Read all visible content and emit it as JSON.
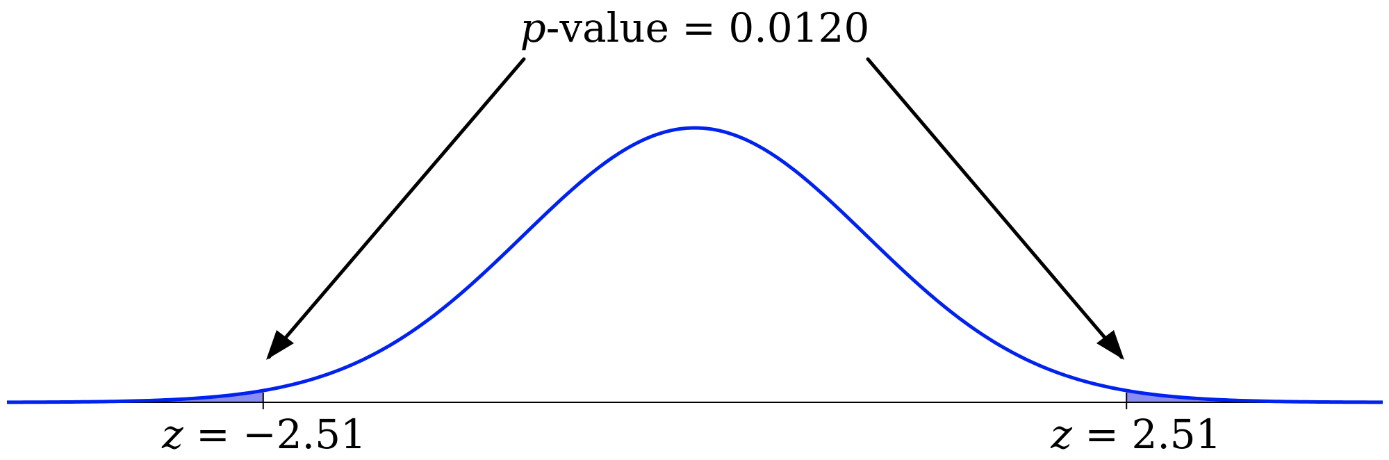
{
  "annotation": {
    "p_symbol": "p",
    "p_rest": "-value = 0.0120"
  },
  "left_label": {
    "symbol": "z",
    "rest": " = −2.51"
  },
  "right_label": {
    "symbol": "z",
    "rest": " = 2.51"
  },
  "distribution": {
    "type": "normal",
    "mean": 0,
    "sd": 1,
    "x_range": [
      -4,
      4
    ]
  },
  "critical_values": {
    "left": -2.51,
    "right": 2.51
  },
  "p_value": 0.012,
  "colors": {
    "curve": "#0022ee",
    "tail_fill": "#8a8ef0",
    "axis": "#000000",
    "arrow": "#000000"
  }
}
